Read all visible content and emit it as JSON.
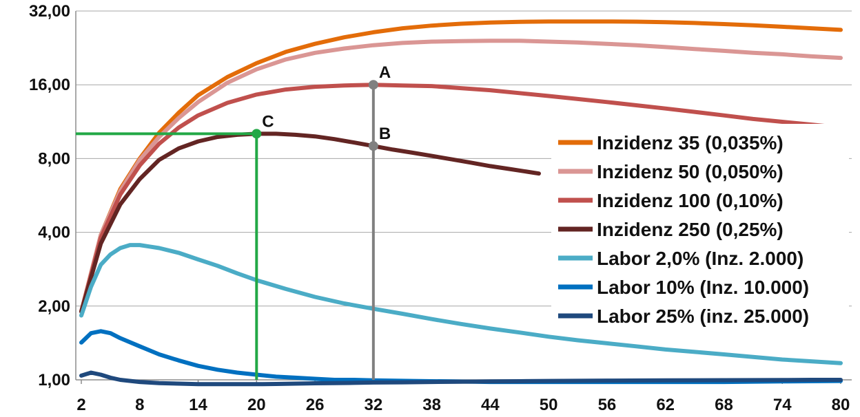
{
  "chart_data": {
    "type": "line",
    "y_scale": "log2",
    "ylim": [
      1,
      32
    ],
    "xlim": [
      2,
      80
    ],
    "yticks": [
      "1,00",
      "2,00",
      "4,00",
      "8,00",
      "16,00",
      "32,00"
    ],
    "xticks": [
      "2",
      "8",
      "14",
      "20",
      "26",
      "32",
      "38",
      "44",
      "50",
      "56",
      "62",
      "68",
      "74",
      "80"
    ],
    "grid": "horizontal",
    "legend_position": "right",
    "series": [
      {
        "name": "Inzidenz 35 (0,035%)",
        "color": "#E36C09",
        "x": [
          2,
          4,
          6,
          8,
          10,
          12,
          14,
          17,
          20,
          23,
          26,
          29,
          32,
          35,
          38,
          41,
          44,
          47,
          50,
          53,
          56,
          59,
          62,
          65,
          68,
          71,
          74,
          77,
          80
        ],
        "y": [
          1.9,
          3.9,
          6.0,
          8.0,
          10.2,
          12.3,
          14.5,
          17.2,
          19.6,
          21.8,
          23.5,
          25.0,
          26.2,
          27.2,
          27.9,
          28.4,
          28.7,
          28.9,
          29.0,
          29.0,
          29.0,
          28.95,
          28.8,
          28.6,
          28.3,
          28.0,
          27.6,
          27.2,
          26.8
        ]
      },
      {
        "name": "Inzidenz 50 (0,050%)",
        "color": "#DA9694",
        "x": [
          2,
          4,
          6,
          8,
          10,
          12,
          14,
          17,
          20,
          23,
          26,
          29,
          32,
          35,
          38,
          41,
          44,
          47,
          50,
          53,
          56,
          59,
          62,
          65,
          68,
          71,
          74,
          77,
          80
        ],
        "y": [
          1.9,
          3.9,
          5.9,
          7.9,
          9.8,
          11.7,
          13.6,
          16.3,
          18.5,
          20.3,
          21.6,
          22.5,
          23.2,
          23.7,
          24.0,
          24.1,
          24.2,
          24.2,
          24.0,
          23.8,
          23.5,
          23.2,
          22.8,
          22.4,
          22.0,
          21.6,
          21.3,
          20.9,
          20.6
        ]
      },
      {
        "name": "Inzidenz 100 (0,10%)",
        "color": "#C0504D",
        "x": [
          2,
          4,
          6,
          8,
          10,
          12,
          14,
          17,
          20,
          23,
          26,
          29,
          32,
          35,
          38,
          41,
          44,
          47,
          50,
          53,
          56,
          59,
          62,
          65,
          68,
          71,
          74,
          77,
          80
        ],
        "y": [
          1.9,
          3.8,
          5.7,
          7.5,
          9.2,
          10.7,
          12.0,
          13.5,
          14.6,
          15.3,
          15.7,
          15.9,
          16.0,
          15.9,
          15.8,
          15.5,
          15.2,
          14.8,
          14.4,
          14.0,
          13.6,
          13.2,
          12.8,
          12.4,
          12.0,
          11.6,
          11.3,
          11.0,
          10.7
        ]
      },
      {
        "name": "Inzidenz 250 (0,25%)",
        "color": "#632523",
        "x": [
          2,
          4,
          6,
          8,
          10,
          12,
          14,
          16,
          18,
          20,
          22,
          24,
          26,
          28,
          30,
          32,
          34,
          36,
          38,
          40,
          42,
          44,
          46,
          48,
          49
        ],
        "y": [
          1.9,
          3.6,
          5.2,
          6.6,
          7.9,
          8.8,
          9.4,
          9.8,
          10.0,
          10.1,
          10.1,
          10.0,
          9.85,
          9.6,
          9.3,
          9.0,
          8.7,
          8.45,
          8.2,
          7.95,
          7.7,
          7.45,
          7.25,
          7.05,
          6.95
        ]
      },
      {
        "name": "Labor 2,0% (Inz. 2.000)",
        "color": "#4BACC6",
        "x": [
          2,
          3,
          4,
          5,
          6,
          7,
          8,
          9,
          10,
          12,
          14,
          16,
          18,
          20,
          23,
          26,
          29,
          32,
          35,
          38,
          41,
          44,
          47,
          50,
          53,
          56,
          59,
          62,
          65,
          68,
          71,
          74,
          77,
          80
        ],
        "y": [
          1.83,
          2.4,
          2.95,
          3.25,
          3.45,
          3.55,
          3.55,
          3.5,
          3.45,
          3.3,
          3.1,
          2.92,
          2.72,
          2.55,
          2.35,
          2.18,
          2.05,
          1.95,
          1.86,
          1.77,
          1.69,
          1.62,
          1.56,
          1.5,
          1.45,
          1.41,
          1.37,
          1.33,
          1.3,
          1.27,
          1.24,
          1.21,
          1.19,
          1.17
        ]
      },
      {
        "name": "Labor 10% (Inz. 10.000)",
        "color": "#0070C0",
        "x": [
          2,
          3,
          4,
          5,
          6,
          8,
          10,
          12,
          14,
          16,
          18,
          20,
          22,
          24,
          26,
          28,
          30,
          32,
          36,
          40,
          44,
          50,
          56,
          62,
          68,
          74,
          80
        ],
        "y": [
          1.42,
          1.55,
          1.58,
          1.55,
          1.48,
          1.37,
          1.27,
          1.2,
          1.14,
          1.1,
          1.07,
          1.05,
          1.03,
          1.02,
          1.01,
          1.0,
          1.0,
          0.995,
          0.99,
          0.985,
          0.98,
          0.98,
          0.98,
          0.98,
          0.98,
          0.985,
          0.99
        ]
      },
      {
        "name": "Labor 25% (inz. 25.000)",
        "color": "#1F497D",
        "x": [
          2,
          3,
          4,
          5,
          6,
          8,
          10,
          12,
          14,
          16,
          18,
          20,
          22,
          24,
          26,
          28,
          30,
          32,
          35,
          38,
          41,
          44,
          47,
          50,
          56,
          62,
          68,
          74,
          77,
          80
        ],
        "y": [
          1.04,
          1.07,
          1.05,
          1.02,
          1.0,
          0.98,
          0.97,
          0.965,
          0.96,
          0.96,
          0.96,
          0.96,
          0.962,
          0.965,
          0.968,
          0.97,
          0.972,
          0.975,
          0.977,
          0.98,
          0.982,
          0.985,
          0.987,
          0.99,
          0.993,
          0.995,
          0.997,
          0.998,
          1.0,
          1.0
        ]
      }
    ],
    "annotations": [
      {
        "label": "A",
        "x": 32,
        "y": 16.0,
        "color": "#808080"
      },
      {
        "label": "B",
        "x": 32,
        "y": 9.0,
        "color": "#808080"
      },
      {
        "label": "C",
        "x": 20,
        "y": 10.1,
        "color": "#22A846"
      }
    ],
    "reference_lines": [
      {
        "color": "#808080",
        "orientation": "vertical",
        "x": 32,
        "from_y": 1,
        "to_y": 16.0
      },
      {
        "color": "#22A846",
        "orientation": "vertical",
        "x": 20,
        "from_y": 1,
        "to_y": 10.1
      },
      {
        "color": "#22A846",
        "orientation": "horizontal",
        "y": 10.1,
        "from_x": 2,
        "to_x": 20
      }
    ]
  }
}
